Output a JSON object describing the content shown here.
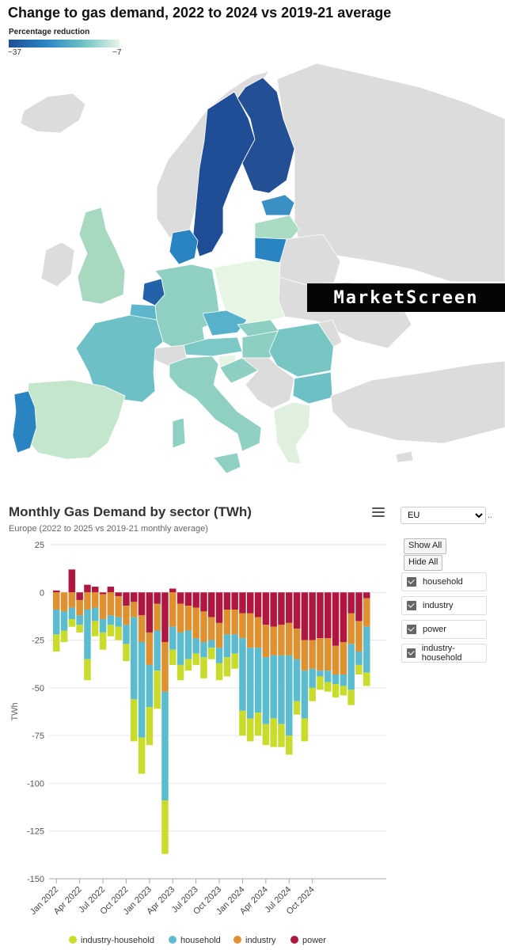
{
  "map": {
    "title": "Change to gas demand, 2022 to 2024 vs 2019-21 average",
    "legend_title": "Percentage reduction",
    "legend_min": "−37",
    "legend_max": "−7",
    "colors": [
      "#1f4e96",
      "#2a84c2",
      "#6cc0c6",
      "#e6f5e4"
    ],
    "no_data_color": "#dcdcdc"
  },
  "watermark": "MarketScreen",
  "controls": {
    "region_options": [
      "EU"
    ],
    "region_selected": "EU",
    "dots": "..",
    "show_all": "Show All",
    "hide_all": "Hide All",
    "series": [
      "household",
      "industry",
      "power",
      "industry-household"
    ]
  },
  "chart_data": {
    "type": "bar",
    "stacked": true,
    "title": "Monthly Gas Demand by sector (TWh)",
    "subtitle": "Europe (2022 to 2025 vs 2019-21 monthly average)",
    "ylabel": "TWh",
    "ylim": [
      -150,
      25
    ],
    "yticks": [
      25,
      0,
      -25,
      -50,
      -75,
      -100,
      -125,
      -150
    ],
    "grid": true,
    "legend_placement": "bottom",
    "x_tick_labels": [
      "Jan 2022",
      "Apr 2022",
      "Jul 2022",
      "Oct 2022",
      "Jan 2023",
      "Apr 2023",
      "Jul 2023",
      "Oct 2023",
      "Jan 2024",
      "Apr 2024",
      "Jul 2024",
      "Oct 2024"
    ],
    "x_tick_every": 3,
    "series": [
      {
        "name": "industry-household",
        "color": "#c9dc2b",
        "values": [
          -9,
          -6,
          -4,
          -4,
          -11,
          -8,
          -9,
          -6,
          -7,
          -9,
          -22,
          -19,
          -20,
          -20,
          -28,
          -8,
          -8,
          -6,
          -6,
          -11,
          -6,
          -9,
          -10,
          -8,
          -13,
          -12,
          -12,
          -11,
          -15,
          -12,
          -10,
          -7,
          -12,
          -7,
          -7,
          -5,
          -7,
          -5,
          -8,
          -5,
          -7
        ]
      },
      {
        "name": "household",
        "color": "#5bbcd0",
        "values": [
          -13,
          -10,
          -6,
          -5,
          -26,
          -7,
          -7,
          -5,
          -5,
          -10,
          -43,
          -50,
          -22,
          -21,
          -57,
          -12,
          -17,
          -15,
          -8,
          -8,
          -4,
          -8,
          -12,
          -10,
          -38,
          -37,
          -34,
          -35,
          -33,
          -36,
          -42,
          -22,
          -25,
          -10,
          -3,
          -6,
          -5,
          -6,
          -24,
          -7,
          -24
        ]
      },
      {
        "name": "industry",
        "color": "#e0912f",
        "values": [
          -9,
          -10,
          -8,
          -8,
          -9,
          -8,
          -13,
          -12,
          -11,
          -10,
          -8,
          -14,
          -17,
          -14,
          -26,
          -18,
          -15,
          -13,
          -16,
          -16,
          -12,
          -13,
          -13,
          -13,
          -13,
          -18,
          -16,
          -17,
          -15,
          -16,
          -17,
          -16,
          -16,
          -15,
          -17,
          -17,
          -15,
          -17,
          -16,
          -16,
          -15
        ]
      },
      {
        "name": "power",
        "color": "#b01740",
        "values": [
          1,
          0,
          12,
          -4,
          4,
          3,
          -1,
          3,
          -2,
          -7,
          -5,
          -12,
          -21,
          -6,
          -26,
          2,
          -6,
          -7,
          -8,
          -10,
          -13,
          -16,
          -9,
          -9,
          -11,
          -11,
          -13,
          -17,
          -18,
          -17,
          -16,
          -19,
          -25,
          -25,
          -24,
          -24,
          -28,
          -26,
          -11,
          -15,
          -3
        ]
      }
    ]
  }
}
